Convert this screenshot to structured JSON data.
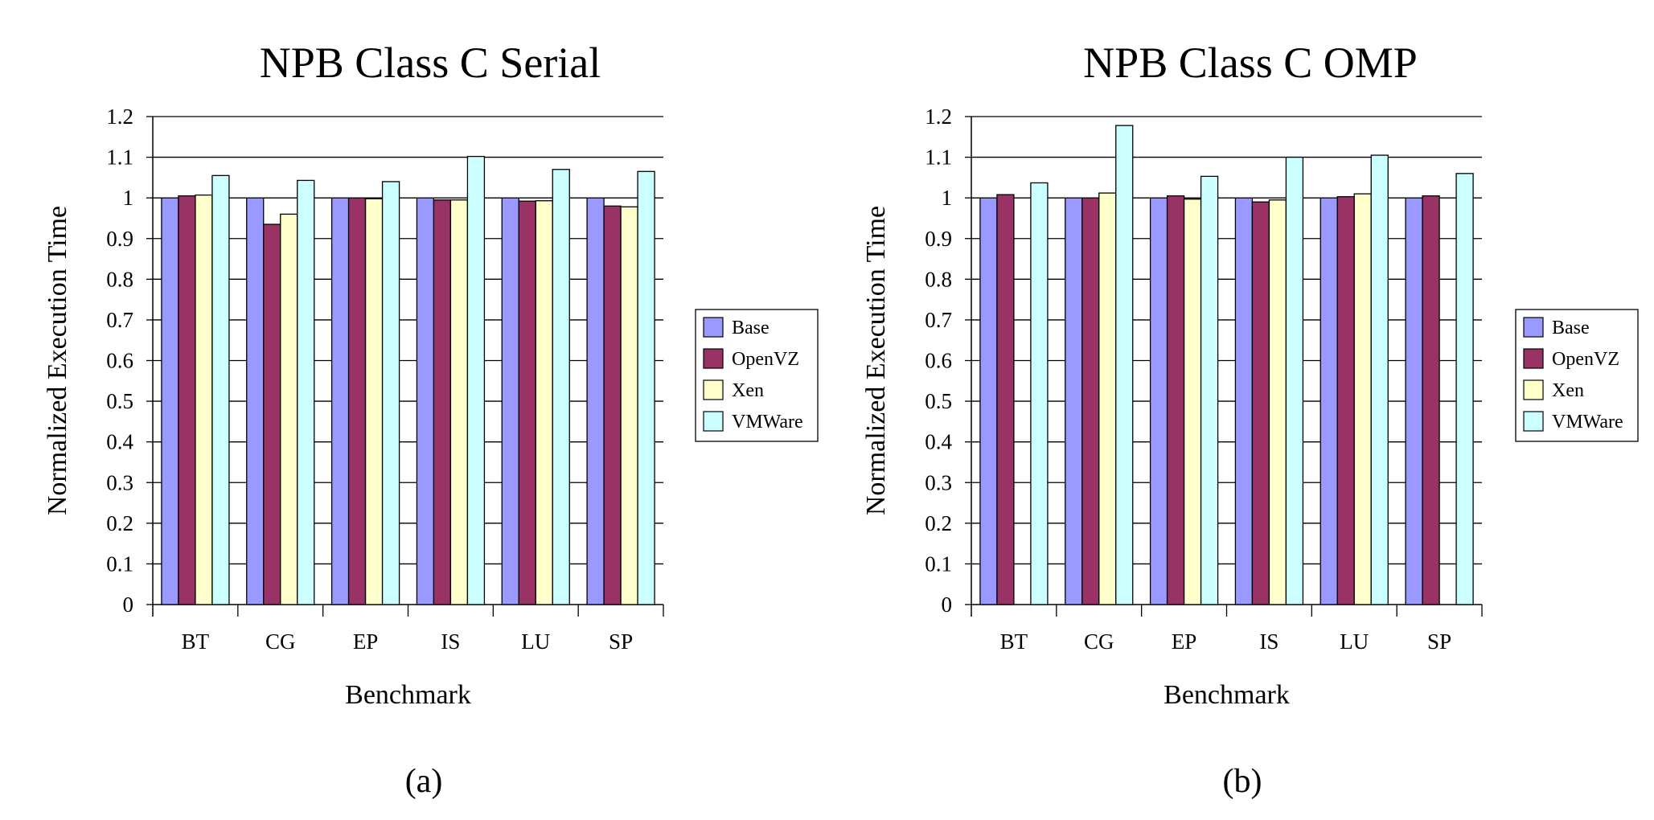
{
  "chart_data": [
    {
      "type": "bar",
      "title": "NPB Class C Serial",
      "xlabel": "Benchmark",
      "ylabel": "Normalized Execution Time",
      "caption": "(a)",
      "ylim": [
        0,
        1.2
      ],
      "yticks": [
        "0",
        "0.1",
        "0.2",
        "0.3",
        "0.4",
        "0.5",
        "0.6",
        "0.7",
        "0.8",
        "0.9",
        "1",
        "1.1",
        "1.2"
      ],
      "grid": true,
      "legend_position": "right",
      "categories": [
        "BT",
        "CG",
        "EP",
        "IS",
        "LU",
        "SP"
      ],
      "series": [
        {
          "name": "Base",
          "color": "#9999FF",
          "values": [
            1.0,
            1.0,
            1.0,
            1.0,
            1.0,
            1.0
          ]
        },
        {
          "name": "OpenVZ",
          "color": "#993366",
          "values": [
            1.005,
            0.935,
            1.0,
            0.995,
            0.992,
            0.98
          ]
        },
        {
          "name": "Xen",
          "color": "#FFFFCC",
          "values": [
            1.007,
            0.96,
            0.998,
            0.995,
            0.993,
            0.978
          ]
        },
        {
          "name": "VMWare",
          "color": "#CCFFFF",
          "values": [
            1.055,
            1.043,
            1.04,
            1.102,
            1.07,
            1.065
          ]
        }
      ]
    },
    {
      "type": "bar",
      "title": "NPB Class C OMP",
      "xlabel": "Benchmark",
      "ylabel": "Normalized Execution Time",
      "caption": "(b)",
      "ylim": [
        0,
        1.2
      ],
      "yticks": [
        "0",
        "0.1",
        "0.2",
        "0.3",
        "0.4",
        "0.5",
        "0.6",
        "0.7",
        "0.8",
        "0.9",
        "1",
        "1.1",
        "1.2"
      ],
      "grid": true,
      "legend_position": "right",
      "categories": [
        "BT",
        "CG",
        "EP",
        "IS",
        "LU",
        "SP"
      ],
      "series": [
        {
          "name": "Base",
          "color": "#9999FF",
          "values": [
            1.0,
            1.0,
            1.0,
            1.0,
            1.0,
            1.0
          ]
        },
        {
          "name": "OpenVZ",
          "color": "#993366",
          "values": [
            1.008,
            1.0,
            1.005,
            0.99,
            1.003,
            1.005
          ]
        },
        {
          "name": "Xen",
          "color": "#FFFFCC",
          "values": [
            null,
            1.012,
            0.997,
            0.995,
            1.01,
            null
          ]
        },
        {
          "name": "VMWare",
          "color": "#CCFFFF",
          "values": [
            1.037,
            1.178,
            1.053,
            1.1,
            1.105,
            1.06
          ]
        }
      ]
    }
  ]
}
